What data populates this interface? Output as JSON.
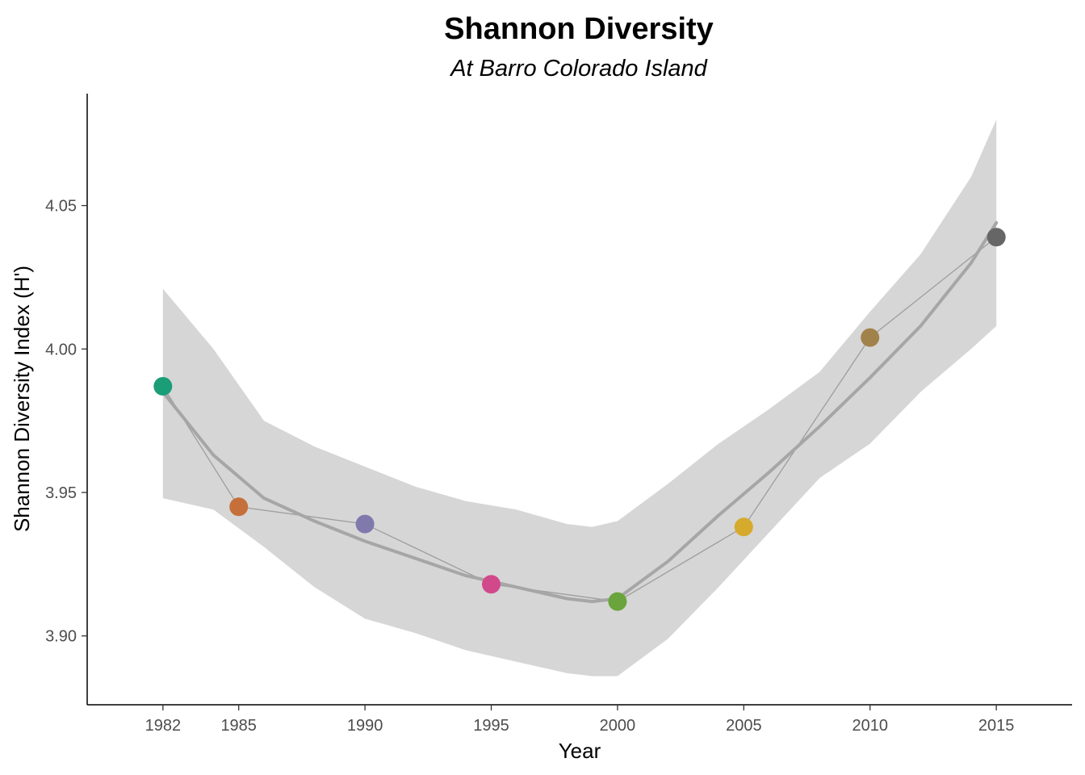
{
  "chart_data": {
    "type": "scatter",
    "title": "Shannon Diversity",
    "subtitle": "At Barro Colorado Island",
    "xlabel": "Year",
    "ylabel": "Shannon Diversity Index (H')",
    "x_ticks": [
      1982,
      1985,
      1990,
      1995,
      2000,
      2005,
      2010,
      2015
    ],
    "y_ticks": [
      3.9,
      3.95,
      4.0,
      4.05
    ],
    "y_tick_labels": [
      "3.90",
      "3.95",
      "4.00",
      "4.05"
    ],
    "xlim": [
      1979,
      2018
    ],
    "ylim": [
      3.876,
      4.089
    ],
    "grid": false,
    "legend": "none",
    "points": [
      {
        "x": 1982,
        "y": 3.987,
        "color": "#1b9e77"
      },
      {
        "x": 1985,
        "y": 3.945,
        "color": "#c5703a"
      },
      {
        "x": 1990,
        "y": 3.939,
        "color": "#8079ac"
      },
      {
        "x": 1995,
        "y": 3.918,
        "color": "#d2498b"
      },
      {
        "x": 2000,
        "y": 3.912,
        "color": "#6aa43c"
      },
      {
        "x": 2005,
        "y": 3.938,
        "color": "#d6aa2d"
      },
      {
        "x": 2010,
        "y": 4.004,
        "color": "#a2824b"
      },
      {
        "x": 2015,
        "y": 4.039,
        "color": "#666666"
      }
    ],
    "smooth": {
      "method": "loess",
      "x": [
        1982,
        1984,
        1986,
        1988,
        1990,
        1992,
        1994,
        1996,
        1998,
        1999,
        2000,
        2002,
        2004,
        2006,
        2008,
        2010,
        2012,
        2014,
        2015
      ],
      "y": [
        3.985,
        3.963,
        3.948,
        3.94,
        3.933,
        3.927,
        3.921,
        3.917,
        3.913,
        3.912,
        3.913,
        3.926,
        3.942,
        3.957,
        3.973,
        3.99,
        4.008,
        4.03,
        4.044
      ],
      "lower": [
        3.948,
        3.944,
        3.931,
        3.917,
        3.906,
        3.901,
        3.895,
        3.891,
        3.887,
        3.886,
        3.886,
        3.899,
        3.917,
        3.936,
        3.955,
        3.967,
        3.985,
        4.0,
        4.008
      ],
      "upper": [
        4.021,
        4.0,
        3.975,
        3.966,
        3.959,
        3.952,
        3.947,
        3.944,
        3.939,
        3.938,
        3.94,
        3.953,
        3.967,
        3.979,
        3.992,
        4.013,
        4.033,
        4.06,
        4.08
      ],
      "line_color": "#a6a6a6",
      "band_color": "#d6d6d6"
    },
    "connector_color": "#9e9e9e"
  }
}
